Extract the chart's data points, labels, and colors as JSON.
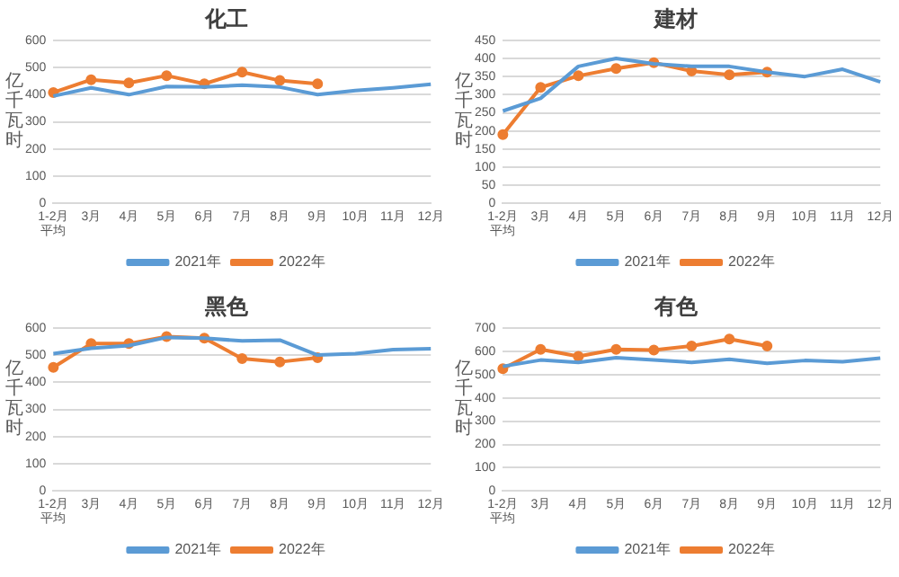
{
  "chart_data": [
    {
      "type": "line",
      "title": "化工",
      "ylabel": "亿千瓦时",
      "categories": [
        "1-2月平均",
        "3月",
        "4月",
        "5月",
        "6月",
        "7月",
        "8月",
        "9月",
        "10月",
        "11月",
        "12月"
      ],
      "ylim": [
        0,
        600
      ],
      "yticks": [
        0,
        100,
        200,
        300,
        400,
        500,
        600
      ],
      "grid": "y",
      "legend": "bottom",
      "series": [
        {
          "name": "2021年",
          "color": "#5b9bd5",
          "marker": "none",
          "values": [
            395,
            425,
            400,
            430,
            428,
            435,
            428,
            400,
            415,
            425,
            438
          ]
        },
        {
          "name": "2022年",
          "color": "#ed7d31",
          "marker": "circle",
          "values": [
            408,
            455,
            443,
            470,
            440,
            483,
            452,
            440,
            null,
            null,
            null
          ]
        }
      ]
    },
    {
      "type": "line",
      "title": "建材",
      "ylabel": "亿千瓦时",
      "categories": [
        "1-2月平均",
        "3月",
        "4月",
        "5月",
        "6月",
        "7月",
        "8月",
        "9月",
        "10月",
        "11月",
        "12月"
      ],
      "ylim": [
        0,
        450
      ],
      "yticks": [
        0,
        50,
        100,
        150,
        200,
        250,
        300,
        350,
        400,
        450
      ],
      "grid": "y",
      "legend": "bottom",
      "series": [
        {
          "name": "2021年",
          "color": "#5b9bd5",
          "marker": "none",
          "values": [
            255,
            290,
            378,
            400,
            385,
            378,
            378,
            362,
            350,
            370,
            335
          ]
        },
        {
          "name": "2022年",
          "color": "#ed7d31",
          "marker": "circle",
          "values": [
            190,
            320,
            352,
            372,
            388,
            365,
            355,
            362,
            null,
            null,
            null
          ]
        }
      ]
    },
    {
      "type": "line",
      "title": "黑色",
      "ylabel": "亿千瓦时",
      "categories": [
        "1-2月平均",
        "3月",
        "4月",
        "5月",
        "6月",
        "7月",
        "8月",
        "9月",
        "10月",
        "11月",
        "12月"
      ],
      "ylim": [
        0,
        600
      ],
      "yticks": [
        0,
        100,
        200,
        300,
        400,
        500,
        600
      ],
      "grid": "y",
      "legend": "bottom",
      "series": [
        {
          "name": "2021年",
          "color": "#5b9bd5",
          "marker": "none",
          "values": [
            505,
            525,
            535,
            565,
            562,
            552,
            555,
            500,
            505,
            520,
            523
          ]
        },
        {
          "name": "2022年",
          "color": "#ed7d31",
          "marker": "circle",
          "values": [
            455,
            542,
            542,
            568,
            562,
            487,
            475,
            490,
            null,
            null,
            null
          ]
        }
      ]
    },
    {
      "type": "line",
      "title": "有色",
      "ylabel": "亿千瓦时",
      "categories": [
        "1-2月平均",
        "3月",
        "4月",
        "5月",
        "6月",
        "7月",
        "8月",
        "9月",
        "10月",
        "11月",
        "12月"
      ],
      "ylim": [
        0,
        700
      ],
      "yticks": [
        0,
        100,
        200,
        300,
        400,
        500,
        600,
        700
      ],
      "grid": "y",
      "legend": "bottom",
      "series": [
        {
          "name": "2021年",
          "color": "#5b9bd5",
          "marker": "none",
          "values": [
            535,
            562,
            552,
            572,
            562,
            552,
            565,
            548,
            560,
            555,
            570
          ]
        },
        {
          "name": "2022年",
          "color": "#ed7d31",
          "marker": "circle",
          "values": [
            525,
            608,
            578,
            608,
            605,
            622,
            652,
            622,
            null,
            null,
            null
          ]
        }
      ]
    }
  ]
}
